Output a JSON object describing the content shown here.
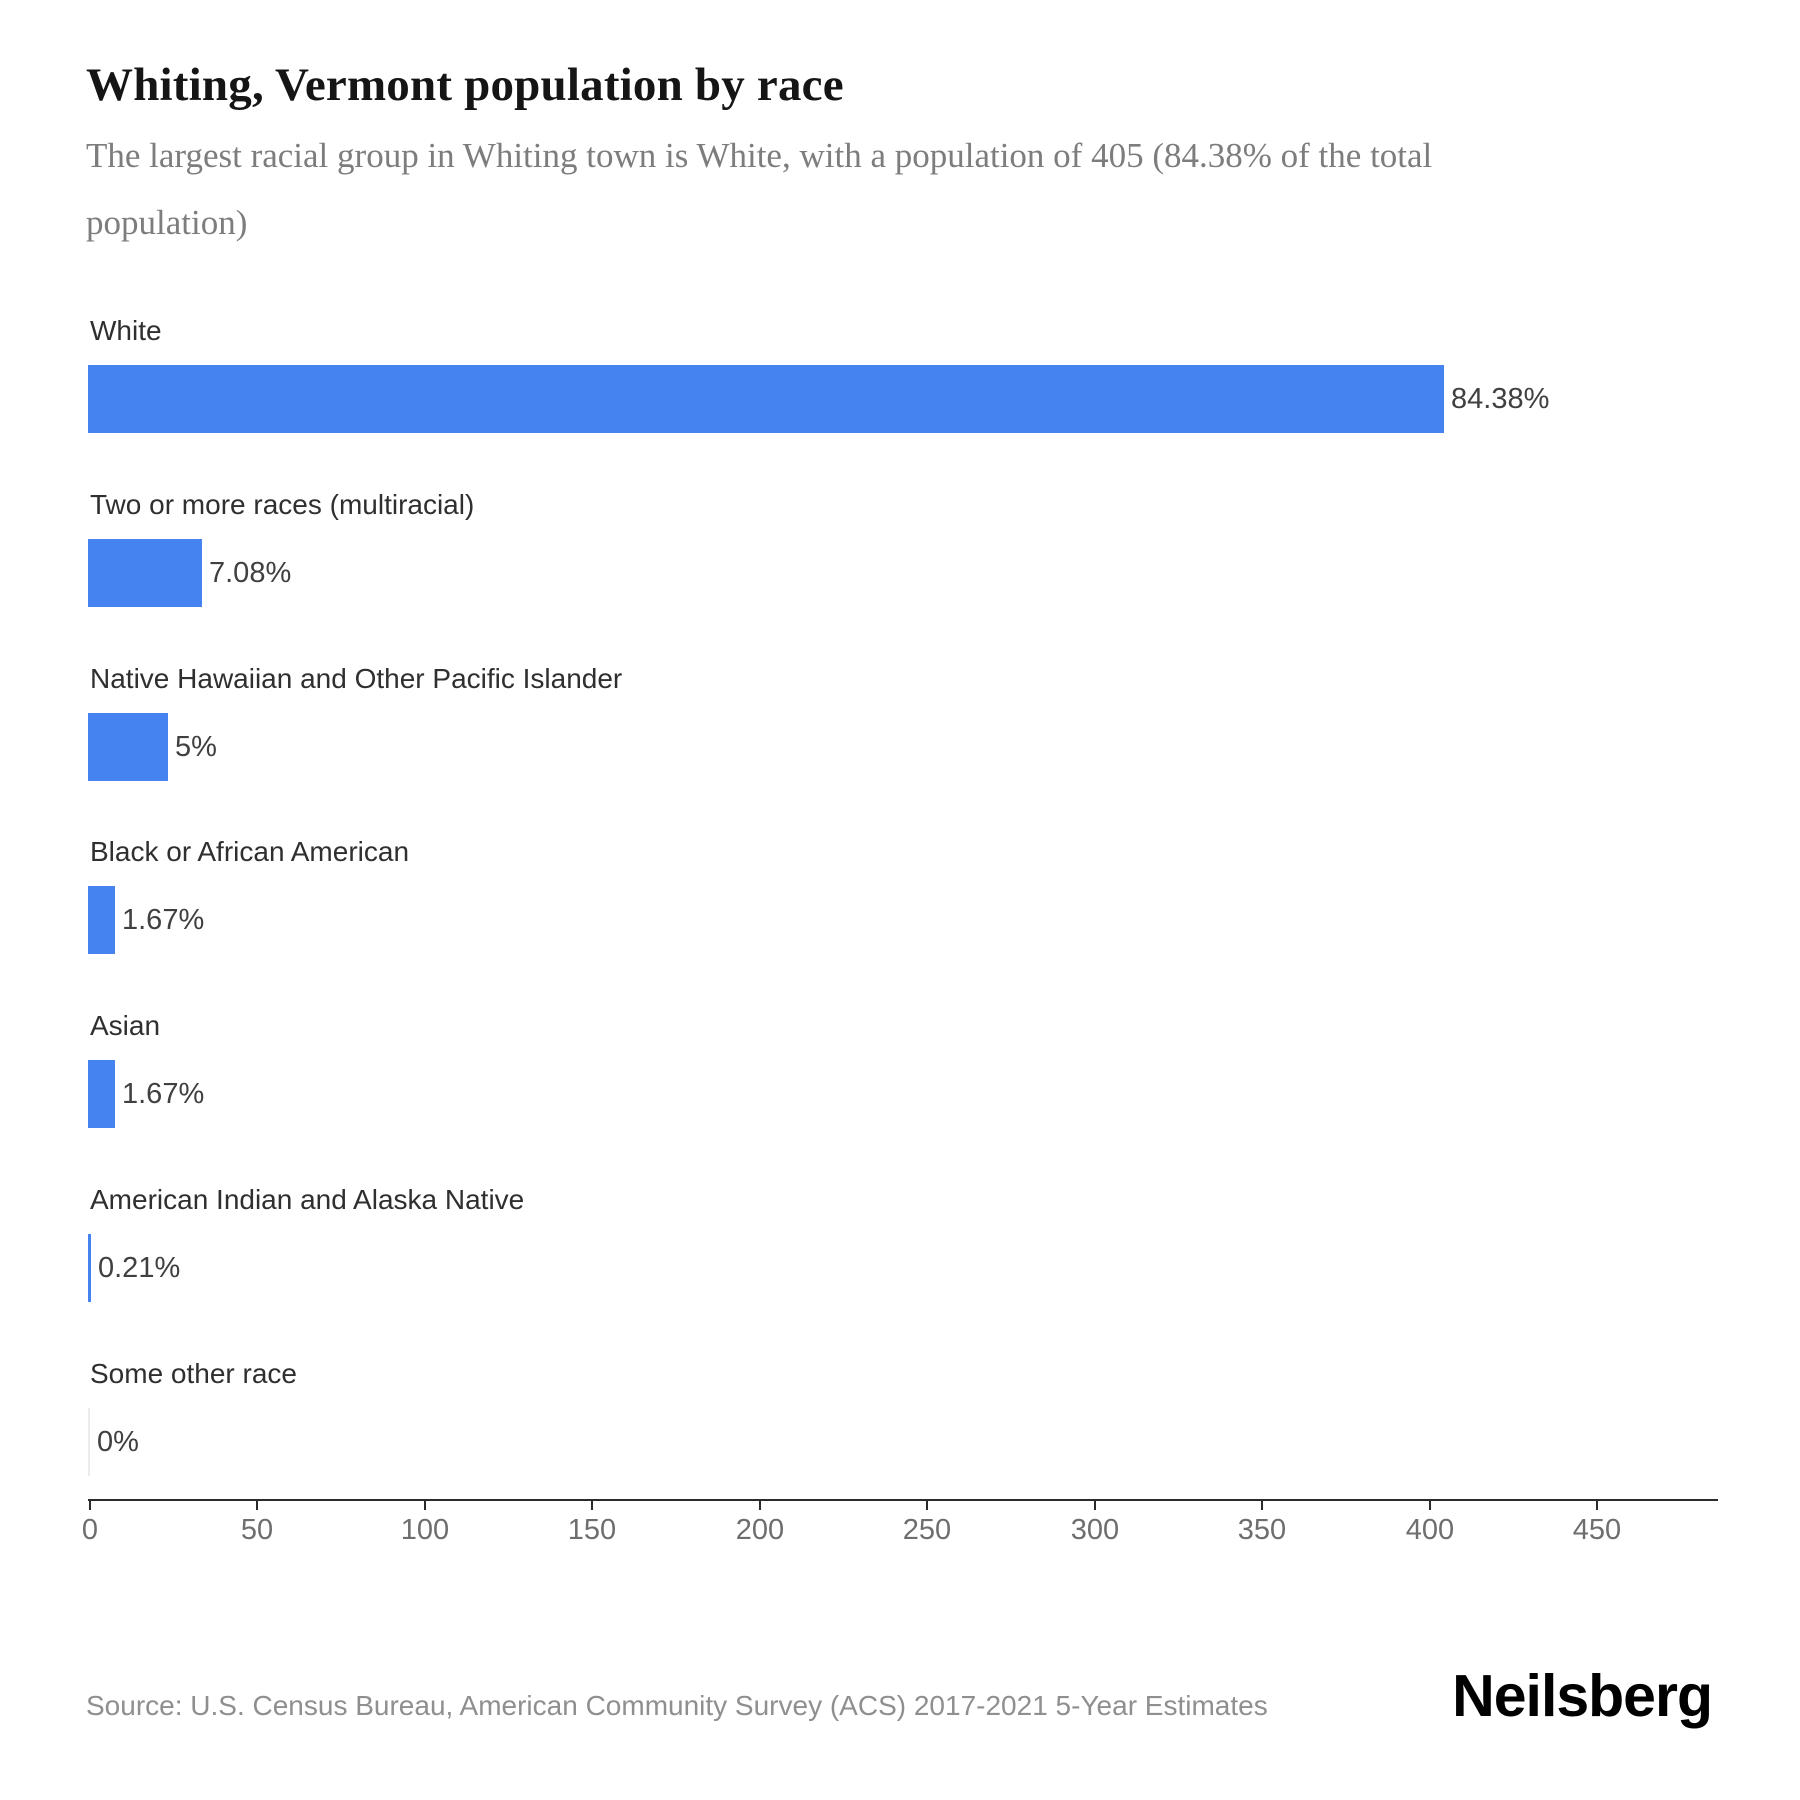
{
  "header": {
    "title": "Whiting, Vermont population by race",
    "subtitle": "The largest racial group in Whiting town is White, with a population of 405 (84.38% of the total population)"
  },
  "footer": {
    "source": "Source: U.S. Census Bureau, American Community Survey (ACS) 2017-2021 5-Year Estimates",
    "brand": "Neilsberg"
  },
  "colors": {
    "bar": "#4584f0",
    "bar_zero": "#ececec",
    "axis": "#2b2b2b"
  },
  "chart_data": {
    "type": "bar",
    "orientation": "horizontal",
    "title": "Whiting, Vermont population by race",
    "categories": [
      "White",
      "Two or more races (multiracial)",
      "Native Hawaiian and Other Pacific Islander",
      "Black or African American",
      "Asian",
      "American Indian and Alaska Native",
      "Some other race"
    ],
    "values": [
      405,
      34,
      24,
      8,
      8,
      1,
      0
    ],
    "percent_labels": [
      "84.38%",
      "7.08%",
      "5%",
      "1.67%",
      "1.67%",
      "0.21%",
      "0%"
    ],
    "xlabel": "",
    "ylabel": "",
    "xlim": [
      0,
      486
    ],
    "xticks": [
      0,
      50,
      100,
      150,
      200,
      250,
      300,
      350,
      400,
      450
    ],
    "grid": false,
    "legend": false
  }
}
